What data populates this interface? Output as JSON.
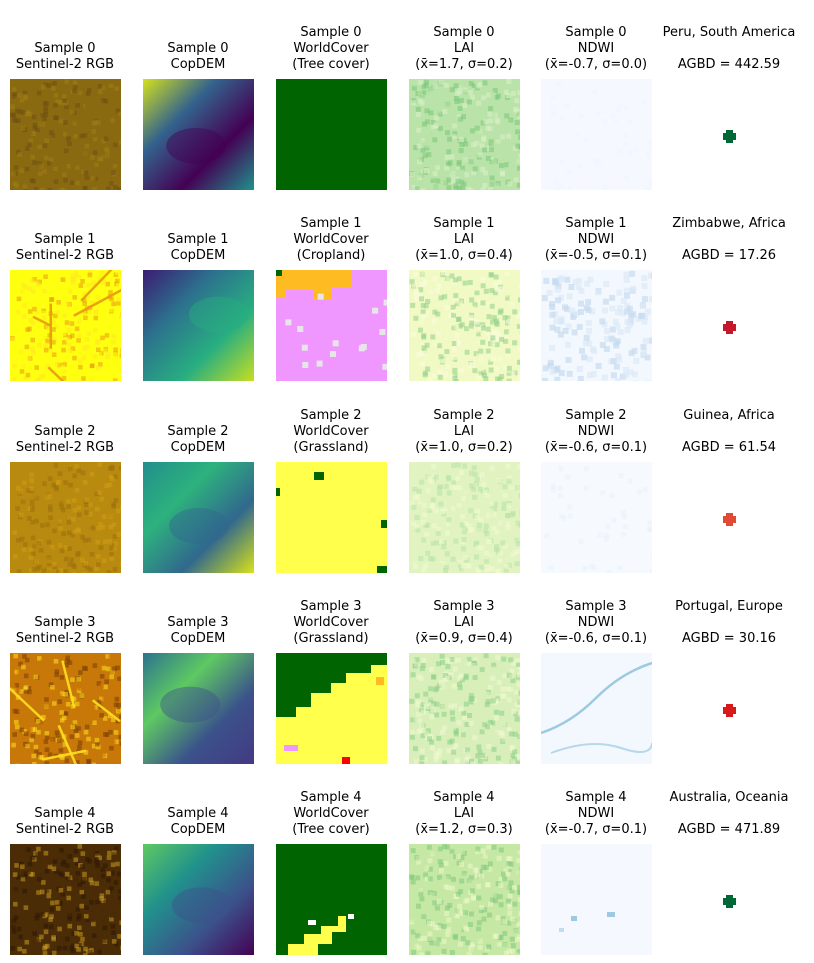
{
  "samples": [
    {
      "rgb_title_1": "Sample 0",
      "rgb_title_2": "Sentinel-2 RGB",
      "dem_title_1": "Sample 0",
      "dem_title_2": "CopDEM",
      "wc_title_1": "Sample 0",
      "wc_title_2": "WorldCover",
      "wc_title_3": "(Tree cover)",
      "lai_title_1": "Sample 0",
      "lai_title_2": "LAI",
      "lai_title_3": "(x̄=1.7, σ=0.2)",
      "ndwi_title_1": "Sample 0",
      "ndwi_title_2": "NDWI",
      "ndwi_title_3": "(x̄=-0.7, σ=0.0)",
      "location": "Peru, South America",
      "agbd": "AGBD = 442.59",
      "marker_color": "#006837",
      "rgb_base": "#8a6a10",
      "rgb_accent": "#6e4e12",
      "rgb_hi": "#a07c18",
      "dem_stops": [
        "#d4e11f",
        "#33638d",
        "#440154",
        "#21918c"
      ],
      "wc_base": "#006400",
      "wc_accent": "#006400",
      "lai_base": "#b9e3a8",
      "lai_dark": "#79c67a",
      "lai_light": "#dcf1c9",
      "ndwi_base": "#f5f9ff",
      "ndwi_accent": "#eef5fd"
    },
    {
      "rgb_title_1": "Sample 1",
      "rgb_title_2": "Sentinel-2 RGB",
      "dem_title_1": "Sample 1",
      "dem_title_2": "CopDEM",
      "wc_title_1": "Sample 1",
      "wc_title_2": "WorldCover",
      "wc_title_3": "(Cropland)",
      "lai_title_1": "Sample 1",
      "lai_title_2": "LAI",
      "lai_title_3": "(x̄=1.0, σ=0.4)",
      "ndwi_title_1": "Sample 1",
      "ndwi_title_2": "NDWI",
      "ndwi_title_3": "(x̄=-0.5, σ=0.1)",
      "location": "Zimbabwe, Africa",
      "agbd": "AGBD = 17.26",
      "marker_color": "#c7172c",
      "rgb_base": "#ffff10",
      "rgb_accent": "#e89a10",
      "rgb_hi": "#ffe820",
      "dem_stops": [
        "#3b1c72",
        "#2c728e",
        "#28ae80",
        "#c5df22"
      ],
      "wc_base": "#f096ff",
      "wc_accent": "#ffbb22",
      "lai_base": "#f1f9c4",
      "lai_dark": "#8fd08a",
      "lai_light": "#fbfdde",
      "ndwi_base": "#f3f8fe",
      "ndwi_accent": "#c6dbef"
    },
    {
      "rgb_title_1": "Sample 2",
      "rgb_title_2": "Sentinel-2 RGB",
      "dem_title_1": "Sample 2",
      "dem_title_2": "CopDEM",
      "wc_title_1": "Sample 2",
      "wc_title_2": "WorldCover",
      "wc_title_3": "(Grassland)",
      "lai_title_1": "Sample 2",
      "lai_title_2": "LAI",
      "lai_title_3": "(x̄=1.0, σ=0.2)",
      "ndwi_title_1": "Sample 2",
      "ndwi_title_2": "NDWI",
      "ndwi_title_3": "(x̄=-0.6, σ=0.1)",
      "location": "Guinea, Africa",
      "agbd": "AGBD = 61.54",
      "marker_color": "#e34a33",
      "rgb_base": "#b88a10",
      "rgb_accent": "#9a700c",
      "rgb_hi": "#d09c14",
      "dem_stops": [
        "#218e8d",
        "#2db27d",
        "#31688e",
        "#d8e219"
      ],
      "wc_base": "#ffff4c",
      "wc_accent": "#006400",
      "lai_base": "#e0f3c0",
      "lai_dark": "#b7e1a6",
      "lai_light": "#f2fad4",
      "ndwi_base": "#f6faff",
      "ndwi_accent": "#e7f0fa"
    },
    {
      "rgb_title_1": "Sample 3",
      "rgb_title_2": "Sentinel-2 RGB",
      "dem_title_1": "Sample 3",
      "dem_title_2": "CopDEM",
      "wc_title_1": "Sample 3",
      "wc_title_2": "WorldCover",
      "wc_title_3": "(Grassland)",
      "lai_title_1": "Sample 3",
      "lai_title_2": "LAI",
      "lai_title_3": "(x̄=0.9, σ=0.4)",
      "ndwi_title_1": "Sample 3",
      "ndwi_title_2": "NDWI",
      "ndwi_title_3": "(x̄=-0.6, σ=0.1)",
      "location": "Portugal, Europe",
      "agbd": "AGBD = 30.16",
      "marker_color": "#d7191c",
      "rgb_base": "#c87808",
      "rgb_accent": "#7a3e06",
      "rgb_hi": "#ffe020",
      "dem_stops": [
        "#2c728e",
        "#5ec962",
        "#3b528b",
        "#443983"
      ],
      "wc_base": "#ffff4c",
      "wc_accent": "#006400",
      "lai_base": "#d8efba",
      "lai_dark": "#8ccf86",
      "lai_light": "#f0f9d2",
      "ndwi_base": "#f3f8fe",
      "ndwi_accent": "#9ecae1"
    },
    {
      "rgb_title_1": "Sample 4",
      "rgb_title_2": "Sentinel-2 RGB",
      "dem_title_1": "Sample 4",
      "dem_title_2": "CopDEM",
      "wc_title_1": "Sample 4",
      "wc_title_2": "WorldCover",
      "wc_title_3": "(Tree cover)",
      "lai_title_1": "Sample 4",
      "lai_title_2": "LAI",
      "lai_title_3": "(x̄=1.2, σ=0.3)",
      "ndwi_title_1": "Sample 4",
      "ndwi_title_2": "NDWI",
      "ndwi_title_3": "(x̄=-0.7, σ=0.1)",
      "location": "Australia, Oceania",
      "agbd": "AGBD = 471.89",
      "marker_color": "#006837",
      "rgb_base": "#4a2c06",
      "rgb_accent": "#2e1804",
      "rgb_hi": "#c89a20",
      "dem_stops": [
        "#5ec962",
        "#21918c",
        "#3b528b",
        "#440154"
      ],
      "wc_base": "#006400",
      "wc_accent": "#ffff4c",
      "lai_base": "#c6e8a5",
      "lai_dark": "#7fc97f",
      "lai_light": "#eef8c8",
      "ndwi_base": "#f5f9ff",
      "ndwi_accent": "#9ecae1"
    }
  ]
}
